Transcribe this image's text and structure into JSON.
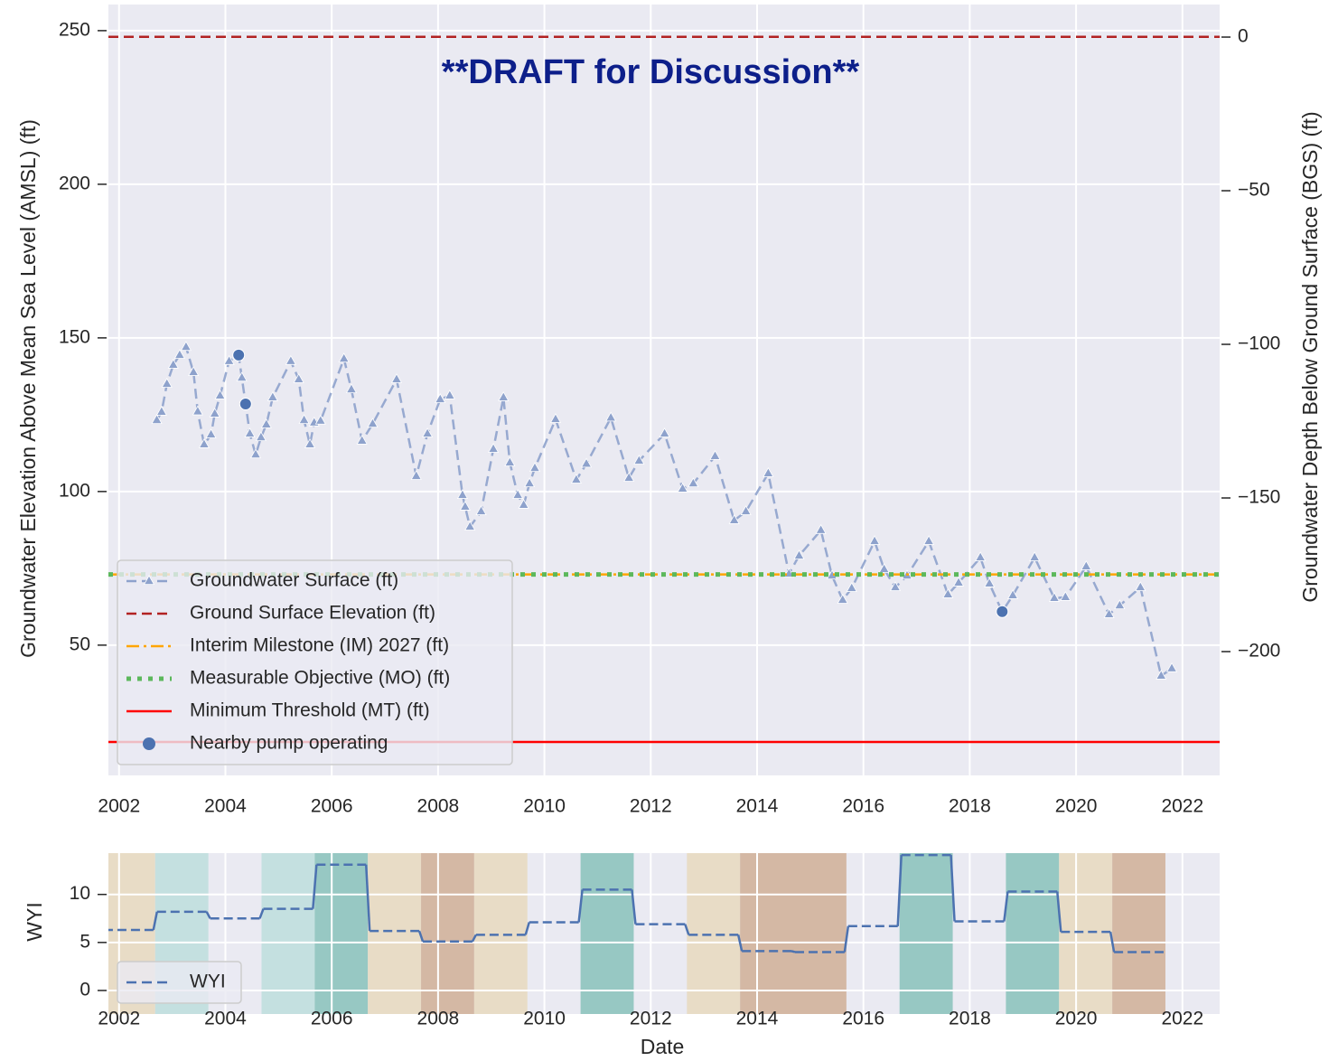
{
  "chart_data": [
    {
      "type": "line",
      "title": "**DRAFT for Discussion**",
      "ylabel": "Groundwater Elevation Above Mean Sea Level (AMSL) (ft)",
      "y2label": "Groundwater Depth Below Ground Surface (BGS) (ft)",
      "xlim": [
        2001.8,
        2022.7
      ],
      "xticks": [
        2002,
        2004,
        2006,
        2008,
        2010,
        2012,
        2014,
        2016,
        2018,
        2020,
        2022
      ],
      "ylim": [
        7.6,
        258.5
      ],
      "yticks": [
        50,
        100,
        150,
        200,
        250
      ],
      "y2lim": [
        -240.3,
        10.6
      ],
      "y2ticks": [
        {
          "value": -200,
          "label": "−200"
        },
        {
          "value": -150,
          "label": "−150"
        },
        {
          "value": -100,
          "label": "−100"
        },
        {
          "value": -50,
          "label": "−50"
        },
        0
      ],
      "grid": true,
      "legend": "lower left",
      "series": [
        {
          "name": "Groundwater Surface (ft)",
          "kind": "line",
          "style": "dashed",
          "marker": "triangle",
          "color": "#8ea2cc",
          "x": [
            2002.71,
            2002.8,
            2002.9,
            2003.02,
            2003.14,
            2003.26,
            2003.4,
            2003.48,
            2003.6,
            2003.73,
            2003.8,
            2003.9,
            2004.07,
            2004.25,
            2004.31,
            2004.38,
            2004.46,
            2004.57,
            2004.67,
            2004.77,
            2004.89,
            2005.23,
            2005.38,
            2005.48,
            2005.59,
            2005.67,
            2005.79,
            2006.23,
            2006.37,
            2006.57,
            2006.77,
            2007.22,
            2007.59,
            2007.8,
            2008.04,
            2008.22,
            2008.46,
            2008.51,
            2008.6,
            2008.81,
            2009.04,
            2009.23,
            2009.35,
            2009.5,
            2009.61,
            2009.72,
            2009.82,
            2010.21,
            2010.6,
            2010.79,
            2011.25,
            2011.59,
            2011.78,
            2012.26,
            2012.6,
            2012.8,
            2013.21,
            2013.57,
            2013.79,
            2014.21,
            2014.6,
            2014.79,
            2015.2,
            2015.41,
            2015.61,
            2015.78,
            2016.21,
            2016.39,
            2016.6,
            2016.82,
            2017.23,
            2017.59,
            2017.79,
            2018.2,
            2018.37,
            2018.61,
            2018.81,
            2019.22,
            2019.59,
            2019.8,
            2020.19,
            2020.62,
            2020.82,
            2021.21,
            2021.6,
            2021.8
          ],
          "values": [
            123.2,
            125.9,
            135,
            141.2,
            144.4,
            147,
            138.8,
            126,
            115.3,
            118.5,
            125.3,
            131.2,
            142.4,
            144.4,
            137,
            128.5,
            118.8,
            112,
            117.6,
            121.8,
            130.6,
            142.4,
            136.5,
            123.2,
            115.3,
            122.4,
            123,
            143.2,
            133.2,
            116.5,
            122,
            136.5,
            105,
            118.8,
            130,
            131.2,
            98.8,
            95,
            88.5,
            93.5,
            113.8,
            130.6,
            109.4,
            98.8,
            95.6,
            102.6,
            107.6,
            123.5,
            103.8,
            109,
            124,
            104.4,
            110,
            118.8,
            100.9,
            102.6,
            111.5,
            90.6,
            93.5,
            105.9,
            73.2,
            79.1,
            87.4,
            72.6,
            64.7,
            68.5,
            83.8,
            74.7,
            68.8,
            72.6,
            83.8,
            66.5,
            70.3,
            78.5,
            70,
            60.9,
            66.2,
            78.5,
            65.3,
            65.6,
            75.6,
            60,
            62.9,
            68.8,
            40,
            42.4
          ]
        },
        {
          "name": "Ground Surface Elevation (ft)",
          "kind": "hline",
          "style": "dashed",
          "color": "#b22222",
          "value": 248
        },
        {
          "name": "Interim Milestone (IM) 2027 (ft)",
          "kind": "hline",
          "style": "dashdot",
          "color": "#ffa500",
          "value": 73
        },
        {
          "name": "Measurable Objective (MO) (ft)",
          "kind": "hline",
          "style": "dotted",
          "color": "#5cb85c",
          "value": 73
        },
        {
          "name": "Minimum Threshold (MT) (ft)",
          "kind": "hline",
          "style": "solid",
          "color": "#ff0000",
          "value": 18.5
        },
        {
          "name": "Nearby pump operating",
          "kind": "scatter",
          "color": "#4c72b0",
          "x": [
            2004.25,
            2004.38,
            2018.61
          ],
          "values": [
            144.4,
            128.5,
            60.9
          ]
        }
      ]
    },
    {
      "type": "step",
      "ylabel": "WYI",
      "xlabel": "Date",
      "xlim": [
        2001.8,
        2022.7
      ],
      "xticks": [
        2002,
        2004,
        2006,
        2008,
        2010,
        2012,
        2014,
        2016,
        2018,
        2020,
        2022
      ],
      "ylim": [
        -2.45,
        14.3
      ],
      "yticks": [
        0,
        5,
        10
      ],
      "grid": true,
      "legend": "lower left",
      "bands": [
        {
          "x0": 2001.68,
          "x1": 2002.68,
          "color": "#e8dcc6"
        },
        {
          "x0": 2002.68,
          "x1": 2003.68,
          "color": "#c4e0e0"
        },
        {
          "x0": 2004.68,
          "x1": 2005.68,
          "color": "#c4e0e0"
        },
        {
          "x0": 2005.68,
          "x1": 2006.68,
          "color": "#97c8c3"
        },
        {
          "x0": 2006.68,
          "x1": 2007.68,
          "color": "#e8dcc6"
        },
        {
          "x0": 2007.68,
          "x1": 2008.68,
          "color": "#d4b8a4"
        },
        {
          "x0": 2008.68,
          "x1": 2009.68,
          "color": "#e8dcc6"
        },
        {
          "x0": 2010.68,
          "x1": 2011.68,
          "color": "#97c8c3"
        },
        {
          "x0": 2012.68,
          "x1": 2013.68,
          "color": "#e8dcc6"
        },
        {
          "x0": 2013.68,
          "x1": 2015.68,
          "color": "#d4b8a4"
        },
        {
          "x0": 2016.68,
          "x1": 2017.68,
          "color": "#97c8c3"
        },
        {
          "x0": 2018.68,
          "x1": 2019.68,
          "color": "#97c8c3"
        },
        {
          "x0": 2019.68,
          "x1": 2020.68,
          "color": "#e8dcc6"
        },
        {
          "x0": 2020.68,
          "x1": 2021.68,
          "color": "#d4b8a4"
        }
      ],
      "series": [
        {
          "name": "WYI",
          "color": "#4c72b0",
          "x": [
            2001.68,
            2002.68,
            2003.68,
            2004.68,
            2005.68,
            2006.68,
            2007.68,
            2008.68,
            2009.68,
            2010.68,
            2011.68,
            2012.68,
            2013.68,
            2014.68,
            2015.68,
            2016.68,
            2017.68,
            2018.68,
            2019.68,
            2020.68
          ],
          "values": [
            6.3,
            8.2,
            7.5,
            8.5,
            13.1,
            6.2,
            5.1,
            5.8,
            7.1,
            10.5,
            6.9,
            5.8,
            4.1,
            4.0,
            6.7,
            14.1,
            7.2,
            10.3,
            6.1,
            4.0
          ]
        }
      ]
    }
  ]
}
